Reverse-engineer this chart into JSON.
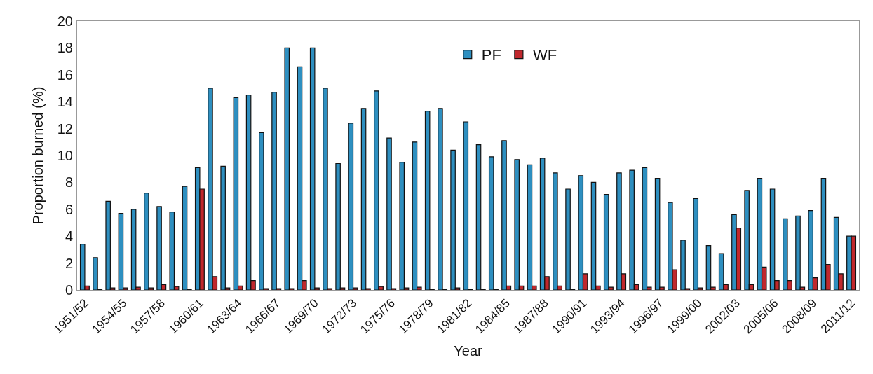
{
  "chart_data": {
    "type": "bar",
    "xlabel": "Year",
    "ylabel": "Proportion burned (%)",
    "categories": [
      "1951/52",
      null,
      null,
      "1954/55",
      null,
      null,
      "1957/58",
      null,
      null,
      "1960/61",
      null,
      null,
      "1963/64",
      null,
      null,
      "1966/67",
      null,
      null,
      "1969/70",
      null,
      null,
      "1972/73",
      null,
      null,
      "1975/76",
      null,
      null,
      "1978/79",
      null,
      null,
      "1981/82",
      null,
      null,
      "1984/85",
      null,
      null,
      "1987/88",
      null,
      null,
      "1990/91",
      null,
      null,
      "1993/94",
      null,
      null,
      "1996/97",
      null,
      null,
      "1999/00",
      null,
      null,
      "2002/03",
      null,
      null,
      "2005/06",
      null,
      null,
      "2008/09",
      null,
      null,
      "2011/12"
    ],
    "series": [
      {
        "name": "PF",
        "color": "#2e8fc0",
        "values": [
          3.4,
          2.4,
          6.6,
          5.7,
          6.0,
          7.2,
          6.2,
          5.8,
          7.7,
          9.1,
          15.0,
          9.2,
          14.3,
          14.5,
          11.7,
          14.7,
          18.0,
          16.6,
          18.0,
          15.0,
          9.4,
          12.4,
          13.5,
          14.8,
          11.3,
          9.5,
          11.0,
          13.3,
          13.5,
          10.4,
          12.5,
          10.8,
          9.9,
          11.1,
          9.7,
          9.3,
          9.8,
          8.7,
          7.5,
          8.5,
          8.0,
          7.1,
          8.7,
          8.9,
          9.1,
          8.3,
          6.5,
          3.7,
          6.8,
          3.3,
          2.7,
          5.6,
          7.4,
          8.3,
          7.5,
          5.3,
          5.5,
          5.9,
          8.3,
          5.4,
          4.0
        ]
      },
      {
        "name": "WF",
        "color": "#c0282d",
        "values": [
          0.3,
          0.05,
          0.15,
          0.15,
          0.2,
          0.15,
          0.4,
          0.25,
          0.05,
          7.5,
          1.0,
          0.15,
          0.3,
          0.7,
          0.1,
          0.1,
          0.1,
          0.7,
          0.15,
          0.1,
          0.15,
          0.15,
          0.1,
          0.25,
          0.1,
          0.15,
          0.2,
          0.05,
          0.05,
          0.15,
          0.05,
          0.05,
          0.05,
          0.3,
          0.3,
          0.3,
          1.0,
          0.3,
          0.05,
          1.2,
          0.3,
          0.2,
          1.2,
          0.4,
          0.2,
          0.2,
          1.5,
          0.1,
          0.15,
          0.2,
          0.4,
          4.6,
          0.4,
          1.7,
          0.7,
          0.7,
          0.2,
          0.9,
          1.9,
          1.2,
          4.0
        ]
      }
    ],
    "ylim": [
      0,
      20
    ],
    "yticks": [
      0,
      2,
      4,
      6,
      8,
      10,
      12,
      14,
      16,
      18,
      20
    ],
    "legend": "top"
  }
}
